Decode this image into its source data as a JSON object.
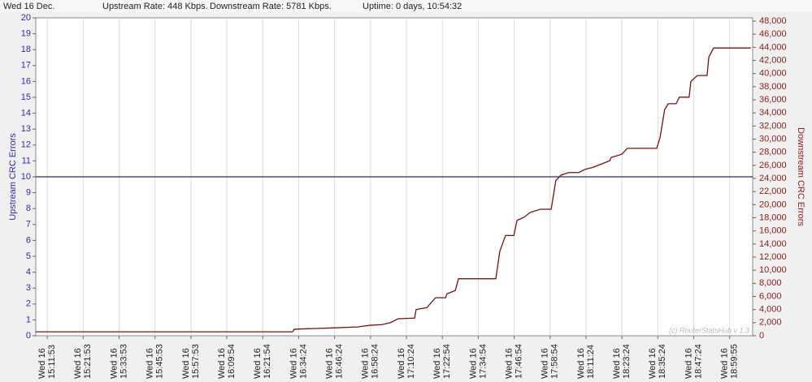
{
  "chart_data": {
    "type": "line",
    "header": {
      "date": "Wed 16 Dec.",
      "upstream_rate": "Upstream Rate: 448 Kbps.",
      "downstream_rate": "Downstream Rate: 5781 Kbps.",
      "uptime": "Uptime: 0 days, 10:54:32"
    },
    "ylabel": "Upstream CRC Errors",
    "ylabel_color": "#2a2ab8",
    "y2label": "Downstream CRC Errors",
    "y2label_color": "#8b1a1a",
    "watermark": "(c) RouterStatsHub v 1.3",
    "x_tick_day": "Wed 16",
    "xlim": [
      -0.32,
      19.64
    ],
    "xticks": [
      {
        "value": 0,
        "label": "15:11:53"
      },
      {
        "value": 1,
        "label": "15:21:53"
      },
      {
        "value": 2,
        "label": "15:33:53"
      },
      {
        "value": 3,
        "label": "15:45:53"
      },
      {
        "value": 4,
        "label": "15:57:53"
      },
      {
        "value": 5,
        "label": "16:09:54"
      },
      {
        "value": 6,
        "label": "16:21:54"
      },
      {
        "value": 7,
        "label": "16:34:24"
      },
      {
        "value": 8,
        "label": "16:46:24"
      },
      {
        "value": 9,
        "label": "16:58:24"
      },
      {
        "value": 10,
        "label": "17:10:24"
      },
      {
        "value": 11,
        "label": "17:22:54"
      },
      {
        "value": 12,
        "label": "17:34:54"
      },
      {
        "value": 13,
        "label": "17:46:54"
      },
      {
        "value": 14,
        "label": "17:58:54"
      },
      {
        "value": 15,
        "label": "18:11:24"
      },
      {
        "value": 16,
        "label": "18:23:24"
      },
      {
        "value": 17,
        "label": "18:35:24"
      },
      {
        "value": 18,
        "label": "18:47:24"
      },
      {
        "value": 19,
        "label": "18:59:55"
      }
    ],
    "ylim": [
      0,
      20
    ],
    "yticks": [
      0,
      1,
      2,
      3,
      4,
      5,
      6,
      7,
      8,
      9,
      10,
      11,
      12,
      13,
      14,
      15,
      16,
      17,
      18,
      19,
      20
    ],
    "y2lim": [
      0,
      48500
    ],
    "y2ticks": [
      0,
      {
        "value": 2000,
        "label": "2,000"
      },
      {
        "value": 4000,
        "label": "4,000"
      },
      {
        "value": 6000,
        "label": "6,000"
      },
      {
        "value": 8000,
        "label": "8,000"
      },
      {
        "value": 10000,
        "label": "10,000"
      },
      {
        "value": 12000,
        "label": "12,000"
      },
      {
        "value": 14000,
        "label": "14,000"
      },
      {
        "value": 16000,
        "label": "16,000"
      },
      {
        "value": 18000,
        "label": "18,000"
      },
      {
        "value": 20000,
        "label": "20,000"
      },
      {
        "value": 22000,
        "label": "22,000"
      },
      {
        "value": 24000,
        "label": "24,000"
      },
      {
        "value": 26000,
        "label": "26,000"
      },
      {
        "value": 28000,
        "label": "28,000"
      },
      {
        "value": 30000,
        "label": "30,000"
      },
      {
        "value": 32000,
        "label": "32,000"
      },
      {
        "value": 34000,
        "label": "34,000"
      },
      {
        "value": 36000,
        "label": "36,000"
      },
      {
        "value": 38000,
        "label": "38,000"
      },
      {
        "value": 40000,
        "label": "40,000"
      },
      {
        "value": 42000,
        "label": "42,000"
      },
      {
        "value": 44000,
        "label": "44,000"
      },
      {
        "value": 46000,
        "label": "46,000"
      },
      {
        "value": 48000,
        "label": "48,000"
      }
    ],
    "grid": true,
    "series": [
      {
        "color": "#1f2f6f",
        "axis": "y",
        "x": [
          -0.32,
          19.64
        ],
        "values": [
          10,
          10
        ]
      },
      {
        "color": "#7a1010",
        "axis": "y2",
        "x": [
          -0.32,
          6.83,
          6.88,
          7.38,
          7.96,
          8.64,
          8.98,
          9.32,
          9.55,
          9.77,
          10.23,
          10.27,
          10.57,
          10.68,
          10.81,
          11.09,
          11.13,
          11.36,
          11.45,
          12.49,
          12.6,
          12.76,
          12.99,
          13.08,
          13.28,
          13.44,
          13.73,
          14.03,
          14.16,
          14.3,
          14.52,
          14.8,
          14.98,
          15.2,
          15.43,
          15.66,
          15.7,
          16.0,
          16.15,
          16.97,
          17.06,
          17.19,
          17.29,
          17.51,
          17.6,
          17.87,
          17.92,
          18.1,
          18.37,
          18.42,
          18.55,
          19.59
        ],
        "values": [
          600,
          600,
          1000,
          1100,
          1200,
          1350,
          1600,
          1700,
          2000,
          2600,
          2700,
          4000,
          4300,
          5000,
          5800,
          5800,
          6400,
          6900,
          8700,
          8700,
          12900,
          15300,
          15300,
          17600,
          18100,
          18800,
          19300,
          19300,
          23700,
          24500,
          24900,
          24900,
          25400,
          25700,
          26200,
          26700,
          27200,
          27700,
          28600,
          28600,
          30200,
          34500,
          35400,
          35400,
          36400,
          36400,
          38800,
          39700,
          39700,
          42500,
          43900,
          43900
        ]
      }
    ]
  }
}
